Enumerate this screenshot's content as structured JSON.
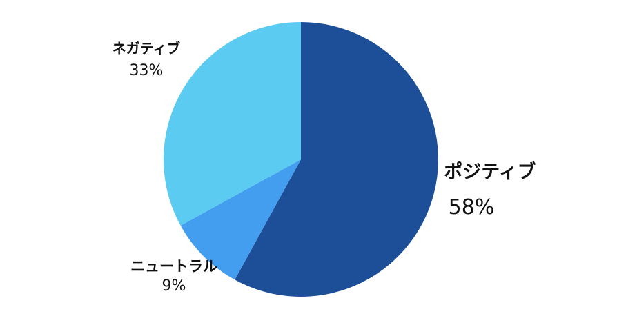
{
  "chart_data": {
    "type": "pie",
    "title": "",
    "start_angle_deg": 0,
    "direction": "clockwise",
    "slices": [
      {
        "name": "ポジティブ",
        "value": 58,
        "label": "58%",
        "color": "#1d4f98"
      },
      {
        "name": "ニュートラル",
        "value": 9,
        "label": "9%",
        "color": "#439ef0"
      },
      {
        "name": "ネガティブ",
        "value": 33,
        "label": "33%",
        "color": "#5ccbf2"
      }
    ]
  }
}
